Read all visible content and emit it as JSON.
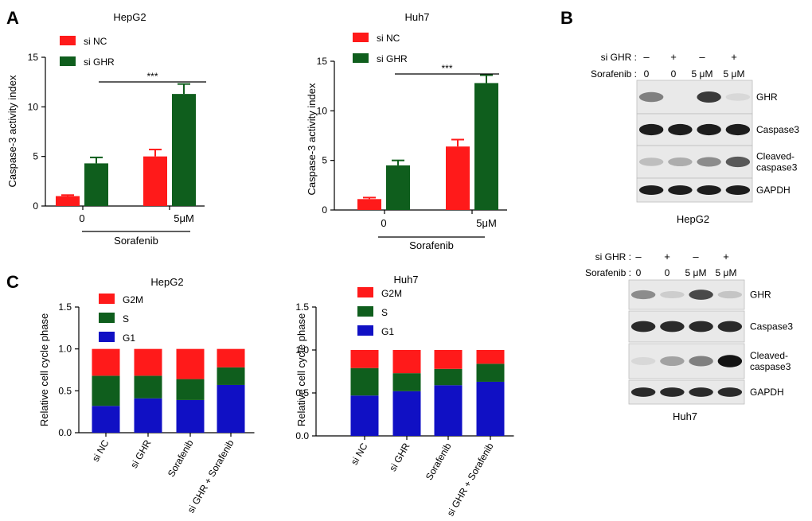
{
  "colors": {
    "red": "#ff1a1a",
    "dark_green": "#0f5e1d",
    "blue": "#1010c4",
    "black": "#000000"
  },
  "panel_labels": {
    "a": "A",
    "b": "B",
    "c": "C"
  },
  "chart_data": [
    {
      "id": "A-HepG2",
      "type": "bar",
      "title": "HepG2",
      "ylabel": "Caspase-3 activity index",
      "ylim": [
        0,
        15
      ],
      "yticks": [
        0,
        5,
        10,
        15
      ],
      "categories": [
        "0",
        "5μM"
      ],
      "group_label": "Sorafenib",
      "legend_position": "top-left",
      "significance": "***",
      "series": [
        {
          "name": "si NC",
          "color": "#ff1a1a",
          "values": [
            1.0,
            5.0
          ],
          "errors": [
            0.1,
            0.7
          ]
        },
        {
          "name": "si GHR",
          "color": "#0f5e1d",
          "values": [
            4.3,
            11.3
          ],
          "errors": [
            0.6,
            1.0
          ]
        }
      ]
    },
    {
      "id": "A-Huh7",
      "type": "bar",
      "title": "Huh7",
      "ylabel": "Caspase-3 activity index",
      "ylim": [
        0,
        15
      ],
      "yticks": [
        0,
        5,
        10,
        15
      ],
      "categories": [
        "0",
        "5μM"
      ],
      "group_label": "Sorafenib",
      "legend_position": "top-left",
      "significance": "***",
      "series": [
        {
          "name": "si NC",
          "color": "#ff1a1a",
          "values": [
            1.1,
            6.4
          ],
          "errors": [
            0.15,
            0.7
          ]
        },
        {
          "name": "si GHR",
          "color": "#0f5e1d",
          "values": [
            4.5,
            12.8
          ],
          "errors": [
            0.5,
            0.8
          ]
        }
      ]
    },
    {
      "id": "C-HepG2",
      "type": "bar",
      "stacked": true,
      "title": "HepG2",
      "ylabel": "Relative cell cycle phase",
      "ylim": [
        0,
        1.5
      ],
      "yticks": [
        "0.0",
        "0.5",
        "1.0",
        "1.5"
      ],
      "categories": [
        "si NC",
        "si GHR",
        "Sorafenib",
        "si GHR + Sorafenib"
      ],
      "legend_position": "top-left",
      "series": [
        {
          "name": "G1",
          "color": "#1010c4",
          "values": [
            0.32,
            0.41,
            0.39,
            0.57
          ]
        },
        {
          "name": "S",
          "color": "#0f5e1d",
          "values": [
            0.36,
            0.27,
            0.25,
            0.21
          ]
        },
        {
          "name": "G2M",
          "color": "#ff1a1a",
          "values": [
            0.32,
            0.32,
            0.36,
            0.22
          ]
        }
      ]
    },
    {
      "id": "C-Huh7",
      "type": "bar",
      "stacked": true,
      "title": "Huh7",
      "ylabel": "Relative cell cycle phase",
      "ylim": [
        0,
        1.5
      ],
      "yticks": [
        "0.0",
        "0.5",
        "1.0",
        "1.5"
      ],
      "categories": [
        "si NC",
        "si GHR",
        "Sorafenib",
        "si GHR + Sorafenib"
      ],
      "legend_position": "top-left",
      "series": [
        {
          "name": "G1",
          "color": "#1010c4",
          "values": [
            0.47,
            0.52,
            0.59,
            0.63
          ]
        },
        {
          "name": "S",
          "color": "#0f5e1d",
          "values": [
            0.32,
            0.21,
            0.19,
            0.21
          ]
        },
        {
          "name": "G2M",
          "color": "#ff1a1a",
          "values": [
            0.21,
            0.27,
            0.22,
            0.16
          ]
        }
      ]
    }
  ],
  "western_blots": [
    {
      "id": "B-HepG2",
      "cell_line": "HepG2",
      "row1_label": "si GHR :",
      "row1": [
        "–",
        "+",
        "–",
        "+"
      ],
      "row2_label": "Sorafenib :",
      "row2": [
        "0",
        "0",
        "5 μM",
        "5 μM"
      ],
      "bands": [
        {
          "label": "GHR",
          "intensity": [
            0.55,
            0.0,
            0.8,
            0.05
          ]
        },
        {
          "label": "Caspase3",
          "intensity": [
            0.9,
            0.9,
            0.9,
            0.9
          ]
        },
        {
          "label": "Cleaved-\ncaspase3",
          "intensity": [
            0.25,
            0.35,
            0.5,
            0.7
          ]
        },
        {
          "label": "GAPDH",
          "intensity": [
            0.9,
            0.9,
            0.9,
            0.9
          ]
        }
      ]
    },
    {
      "id": "B-Huh7",
      "cell_line": "Huh7",
      "row1_label": "si GHR :",
      "row1": [
        "–",
        "+",
        "–",
        "+"
      ],
      "row2_label": "Sorafenib :",
      "row2": [
        "0",
        "0",
        "5 μM",
        "5 μM"
      ],
      "bands": [
        {
          "label": "GHR",
          "intensity": [
            0.5,
            0.15,
            0.75,
            0.2
          ]
        },
        {
          "label": "Caspase3",
          "intensity": [
            0.85,
            0.85,
            0.85,
            0.85
          ]
        },
        {
          "label": "Cleaved-\ncaspase3",
          "intensity": [
            0.05,
            0.4,
            0.55,
            0.95
          ]
        },
        {
          "label": "GAPDH",
          "intensity": [
            0.85,
            0.85,
            0.85,
            0.85
          ]
        }
      ]
    }
  ]
}
